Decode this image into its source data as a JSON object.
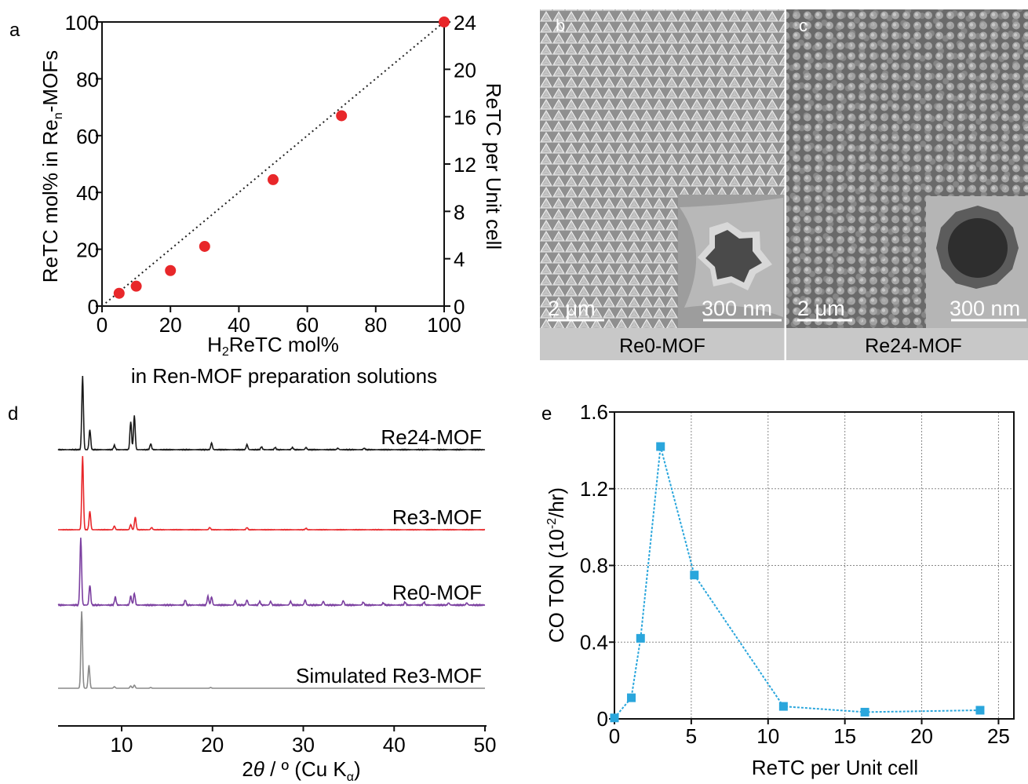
{
  "figure": {
    "panel_labels": {
      "a": "a",
      "b": "b",
      "c": "c",
      "d": "d",
      "e": "e"
    }
  },
  "colors": {
    "scatter_points": "#e8272a",
    "re24_trace": "#1a1a1a",
    "re3_trace": "#e8272a",
    "re0_trace": "#7b3fa0",
    "sim_trace": "#8a8a8a",
    "ton_series": "#2aa6dc",
    "sem_caption_bg": "#c8c8c8"
  },
  "sem": {
    "b": {
      "caption": "Re0-MOF",
      "scale_main": "2 μm",
      "scale_inset": "300 nm"
    },
    "c": {
      "caption": "Re24-MOF",
      "scale_main": "2 μm",
      "scale_inset": "300 nm"
    }
  },
  "chart_data": [
    {
      "id": "a",
      "type": "scatter",
      "xlabel": "H2ReTC mol%",
      "xlabel_line2": "in Ren-MOF preparation solutions",
      "ylabel": "ReTC mol% in Ren-MOFs",
      "y2label": "ReTC per Unit cell",
      "xlim": [
        0,
        100
      ],
      "ylim": [
        0,
        100
      ],
      "y2lim": [
        0,
        24
      ],
      "xticks": [
        0,
        20,
        40,
        60,
        80,
        100
      ],
      "yticks": [
        0,
        20,
        40,
        60,
        80,
        100
      ],
      "y2ticks": [
        0,
        4,
        8,
        12,
        16,
        20,
        24
      ],
      "reference_line": {
        "style": "dotted",
        "from": [
          0,
          0
        ],
        "to": [
          100,
          100
        ]
      },
      "series": [
        {
          "x": [
            5,
            10,
            20,
            30,
            50,
            70,
            100
          ],
          "y": [
            4.5,
            7,
            12.5,
            21,
            44.5,
            67,
            100
          ]
        }
      ]
    },
    {
      "id": "d",
      "type": "line",
      "xlabel": "2θ / º (Cu Kα)",
      "xlim": [
        3,
        50
      ],
      "xticks": [
        10,
        20,
        30,
        40,
        50
      ],
      "series": [
        {
          "name": "Re24-MOF",
          "baseline": 0.12,
          "scale": 0.235,
          "peaks": [
            [
              5.7,
              1.0
            ],
            [
              6.5,
              0.27
            ],
            [
              9.2,
              0.06
            ],
            [
              11.0,
              0.38
            ],
            [
              11.4,
              0.46
            ],
            [
              13.2,
              0.08
            ],
            [
              19.9,
              0.09
            ],
            [
              23.8,
              0.07
            ],
            [
              25.4,
              0.04
            ],
            [
              26.9,
              0.03
            ],
            [
              28.8,
              0.03
            ],
            [
              30.3,
              0.03
            ],
            [
              33.8,
              0.02
            ],
            [
              36.7,
              0.02
            ]
          ]
        },
        {
          "name": "Re3-MOF",
          "baseline": 0.375,
          "scale": 0.235,
          "peaks": [
            [
              5.7,
              1.0
            ],
            [
              6.5,
              0.25
            ],
            [
              9.2,
              0.05
            ],
            [
              11.0,
              0.07
            ],
            [
              11.5,
              0.17
            ],
            [
              13.3,
              0.03
            ],
            [
              19.7,
              0.03
            ],
            [
              23.8,
              0.03
            ],
            [
              30.3,
              0.02
            ]
          ]
        },
        {
          "name": "Re0-MOF",
          "baseline": 0.615,
          "scale": 0.235,
          "peaks": [
            [
              5.5,
              0.92
            ],
            [
              6.5,
              0.27
            ],
            [
              9.3,
              0.11
            ],
            [
              11.0,
              0.12
            ],
            [
              11.4,
              0.16
            ],
            [
              17.0,
              0.07
            ],
            [
              19.5,
              0.12
            ],
            [
              19.9,
              0.11
            ],
            [
              22.5,
              0.06
            ],
            [
              23.8,
              0.07
            ],
            [
              25.2,
              0.05
            ],
            [
              26.4,
              0.05
            ],
            [
              28.6,
              0.05
            ],
            [
              30.2,
              0.07
            ],
            [
              32.2,
              0.05
            ],
            [
              34.4,
              0.06
            ],
            [
              36.6,
              0.04
            ],
            [
              38.8,
              0.03
            ],
            [
              41.2,
              0.04
            ],
            [
              43.3,
              0.04
            ],
            [
              46.0,
              0.03
            ],
            [
              48.0,
              0.03
            ]
          ]
        },
        {
          "name": "Simulated Re3-MOF",
          "baseline": 0.88,
          "scale": 0.245,
          "peaks": [
            [
              5.6,
              1.0
            ],
            [
              6.4,
              0.3
            ],
            [
              9.2,
              0.02
            ],
            [
              11.0,
              0.03
            ],
            [
              11.4,
              0.04
            ],
            [
              13.2,
              0.01
            ],
            [
              19.8,
              0.01
            ]
          ]
        }
      ]
    },
    {
      "id": "e",
      "type": "line",
      "xlabel": "ReTC per Unit cell",
      "ylabel": "CO TON (10",
      "ylabel_sup": "-2",
      "ylabel_tail": "/hr)",
      "xlim": [
        0,
        26
      ],
      "ylim": [
        0,
        1.6
      ],
      "xticks": [
        0,
        5,
        10,
        15,
        20,
        25
      ],
      "yticks": [
        0,
        0.4,
        0.8,
        1.2,
        1.6
      ],
      "grid": true,
      "series": [
        {
          "x": [
            0,
            1.1,
            1.7,
            3.0,
            5.2,
            11.0,
            16.3,
            23.8
          ],
          "y": [
            0.005,
            0.11,
            0.42,
            1.42,
            0.75,
            0.065,
            0.035,
            0.045
          ]
        }
      ]
    }
  ]
}
